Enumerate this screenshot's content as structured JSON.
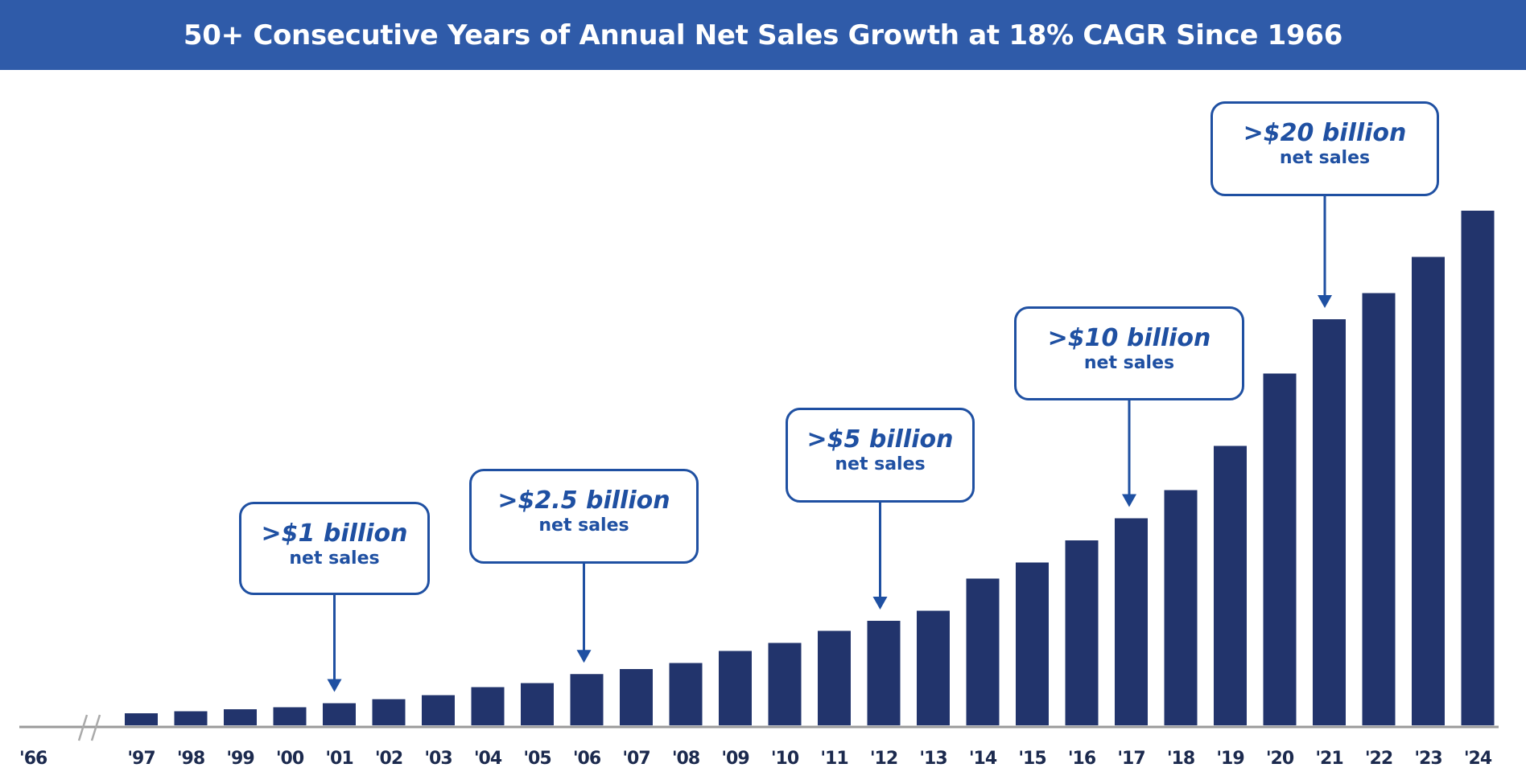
{
  "chart_data": {
    "type": "bar",
    "title": "50+ Consecutive Years of Annual Net Sales Growth at 18% CAGR Since 1966",
    "xlabel": "",
    "ylabel": "",
    "units_note": "estimated net sales, $ billions (no y-axis shown)",
    "break_label": "'66",
    "categories": [
      "'97",
      "'98",
      "'99",
      "'00",
      "'01",
      "'02",
      "'03",
      "'04",
      "'05",
      "'06",
      "'07",
      "'08",
      "'09",
      "'10",
      "'11",
      "'12",
      "'13",
      "'14",
      "'15",
      "'16",
      "'17",
      "'18",
      "'19",
      "'20",
      "'21",
      "'22",
      "'23",
      "'24"
    ],
    "values": [
      0.6,
      0.7,
      0.8,
      0.9,
      1.1,
      1.3,
      1.5,
      1.9,
      2.1,
      2.55,
      2.8,
      3.1,
      3.7,
      4.1,
      4.7,
      5.2,
      5.7,
      7.3,
      8.1,
      9.2,
      10.3,
      11.7,
      13.9,
      17.5,
      20.2,
      21.5,
      23.3,
      25.6
    ],
    "ylim": [
      0,
      26
    ],
    "grid": false,
    "colors": {
      "bar": "#22346c",
      "header": "#2f5ba9",
      "callout": "#1f50a2",
      "axis": "#9a9a9a"
    },
    "annotations": [
      {
        "title": ">$1 billion",
        "subtitle": "net sales",
        "category": "'01"
      },
      {
        "title": ">$2.5 billion",
        "subtitle": "net sales",
        "category": "'06"
      },
      {
        "title": ">$5 billion",
        "subtitle": "net sales",
        "category": "'12"
      },
      {
        "title": ">$10 billion",
        "subtitle": "net sales",
        "category": "'17"
      },
      {
        "title": ">$20 billion",
        "subtitle": "net sales",
        "category": "'21"
      }
    ]
  }
}
